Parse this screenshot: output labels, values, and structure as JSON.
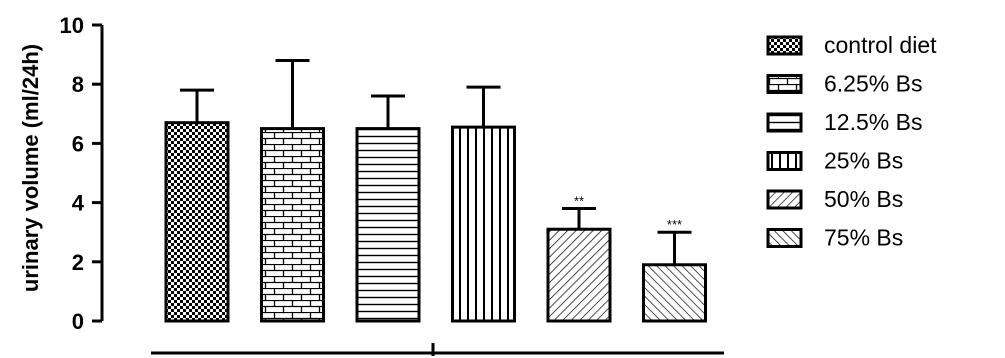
{
  "chart_data": {
    "type": "bar",
    "ylabel": "urinary volume (ml/24h)",
    "ylim": [
      0,
      10
    ],
    "yticks": [
      "0",
      "2",
      "4",
      "6",
      "8",
      "10"
    ],
    "categories": [
      "control diet",
      "6.25% Bs",
      "12.5% Bs",
      "25% Bs",
      "50% Bs",
      "75% Bs"
    ],
    "values": [
      6.7,
      6.5,
      6.5,
      6.55,
      3.1,
      1.9
    ],
    "errors": [
      1.1,
      2.3,
      1.1,
      1.35,
      0.7,
      1.1
    ],
    "significance": [
      "",
      "",
      "",
      "",
      "**",
      "***"
    ],
    "patterns": [
      "checker",
      "brick",
      "hlines",
      "vlines",
      "diag-right",
      "diag-left"
    ],
    "legend_position": "right",
    "bar_color": "#000000"
  }
}
